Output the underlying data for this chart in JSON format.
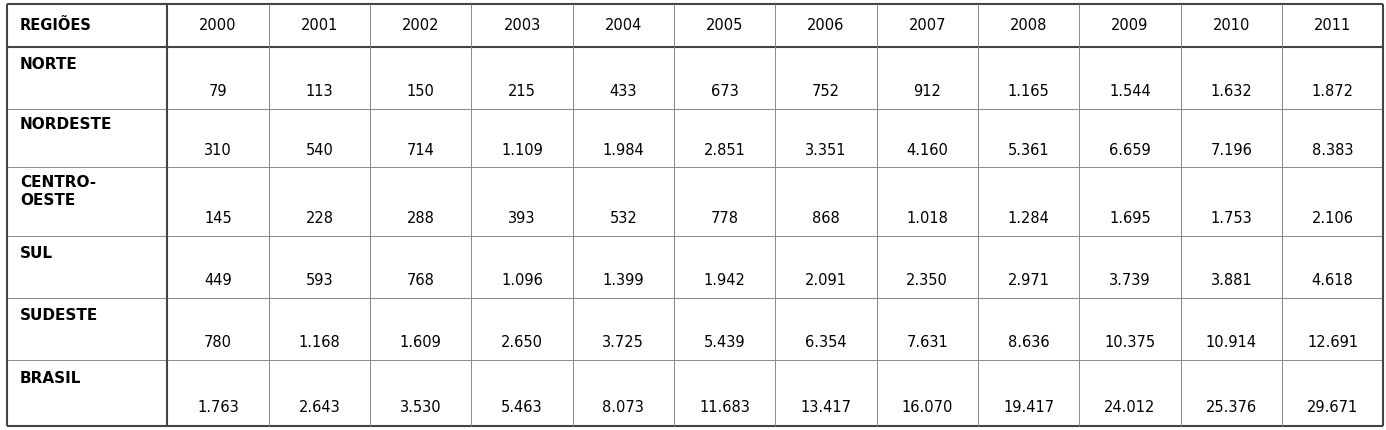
{
  "columns": [
    "REGIÕES",
    "2000",
    "2001",
    "2002",
    "2003",
    "2004",
    "2005",
    "2006",
    "2007",
    "2008",
    "2009",
    "2010",
    "2011"
  ],
  "rows": [
    [
      "NORTE",
      "79",
      "113",
      "150",
      "215",
      "433",
      "673",
      "752",
      "912",
      "1.165",
      "1.544",
      "1.632",
      "1.872"
    ],
    [
      "NORDESTE",
      "310",
      "540",
      "714",
      "1.109",
      "1.984",
      "2.851",
      "3.351",
      "4.160",
      "5.361",
      "6.659",
      "7.196",
      "8.383"
    ],
    [
      "CENTRO-\nOESTE",
      "145",
      "228",
      "288",
      "393",
      "532",
      "778",
      "868",
      "1.018",
      "1.284",
      "1.695",
      "1.753",
      "2.106"
    ],
    [
      "SUL",
      "449",
      "593",
      "768",
      "1.096",
      "1.399",
      "1.942",
      "2.091",
      "2.350",
      "2.971",
      "3.739",
      "3.881",
      "4.618"
    ],
    [
      "SUDESTE",
      "780",
      "1.168",
      "1.609",
      "2.650",
      "3.725",
      "5.439",
      "6.354",
      "7.631",
      "8.636",
      "10.375",
      "10.914",
      "12.691"
    ],
    [
      "BRASIL",
      "1.763",
      "2.643",
      "3.530",
      "5.463",
      "8.073",
      "11.683",
      "13.417",
      "16.070",
      "19.417",
      "24.012",
      "25.376",
      "29.671"
    ]
  ],
  "background_color": "#ffffff",
  "line_color": "#888888",
  "thick_line_color": "#555555",
  "header_fontsize": 10.5,
  "data_fontsize": 10.5,
  "bold_region_fontsize": 11
}
